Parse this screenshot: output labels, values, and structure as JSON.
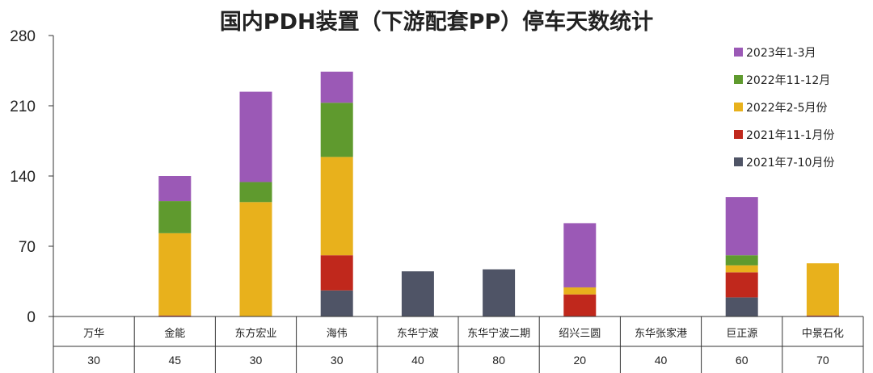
{
  "chart_data": {
    "type": "bar",
    "stacked": true,
    "title": "国内PDH装置（下游配套PP）停车天数统计",
    "xlabel": "",
    "ylabel": "",
    "ylim": [
      0,
      280
    ],
    "yticks": [
      0,
      70,
      140,
      210,
      280
    ],
    "grid": false,
    "legend_position": "top-right",
    "categories": [
      "万华",
      "金能",
      "东方宏业",
      "海伟",
      "东华宁波",
      "东华宁波二期",
      "绍兴三圆",
      "东华张家港",
      "巨正源",
      "中景石化"
    ],
    "table_row": [
      "30",
      "45",
      "30",
      "30",
      "40",
      "80",
      "20",
      "40",
      "60",
      "70"
    ],
    "series": [
      {
        "name": "2021年7-10月份",
        "color": "#4f5466",
        "values": [
          0,
          0,
          0,
          26,
          45,
          47,
          0,
          0,
          19,
          0
        ]
      },
      {
        "name": "2021年11-1月份",
        "color": "#c0281c",
        "values": [
          0,
          1,
          0,
          35,
          0,
          0,
          22,
          0,
          25,
          1
        ]
      },
      {
        "name": "2022年2-5月份",
        "color": "#e8b11c",
        "values": [
          0,
          82,
          114,
          98,
          0,
          0,
          7,
          0,
          7,
          52
        ]
      },
      {
        "name": "2022年11-12月",
        "color": "#5f9a2e",
        "values": [
          0,
          32,
          20,
          54,
          0,
          0,
          0,
          0,
          10,
          0
        ]
      },
      {
        "name": "2023年1-3月",
        "color": "#9b59b6",
        "values": [
          0,
          25,
          90,
          31,
          0,
          0,
          64,
          0,
          58,
          0
        ]
      }
    ]
  }
}
